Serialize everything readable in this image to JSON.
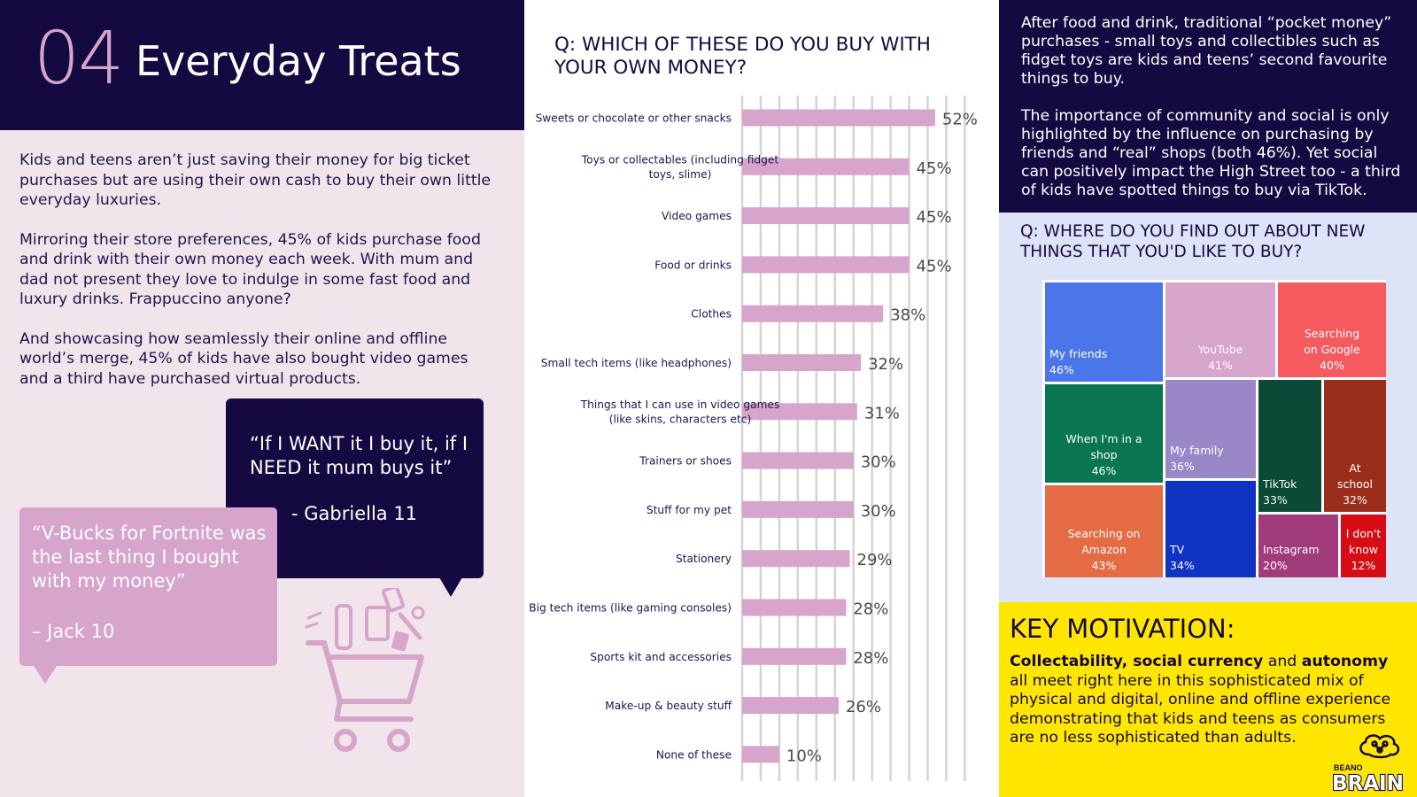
{
  "header": {
    "number": "04",
    "title": "Everyday Treats"
  },
  "intro": {
    "p1": "Kids and teens aren’t  just saving their money for big ticket purchases but are using their own cash to buy their own little everyday luxuries.",
    "p2": "Mirroring their store preferences, 45% of kids purchase food and drink with their own money each week.  With mum and dad not present they love to indulge in some fast food and luxury drinks. Frappuccino anyone?",
    "p3": "And showcasing how seamlessly their online and offline world’s merge, 45% of kids have also bought video games and a third have purchased virtual products."
  },
  "quotes": {
    "gabriella": {
      "text": "“If I WANT it I buy it, if I NEED it mum buys it”",
      "author": "- Gabriella 11"
    },
    "jack": {
      "text": "“V-Bucks for Fortnite was the last thing I bought with my money”",
      "author": "– Jack 10"
    }
  },
  "chart_data": [
    {
      "type": "bar",
      "orientation": "horizontal",
      "title": "Q: WHICH OF THESE DO YOU BUY WITH YOUR OWN MONEY?",
      "categories": [
        [
          "Sweets or chocolate or other snacks"
        ],
        [
          "Toys or collectables (including fidget",
          "toys, slime)"
        ],
        [
          "Video games"
        ],
        [
          "Food or drinks"
        ],
        [
          "Clothes"
        ],
        [
          "Small tech items (like headphones)"
        ],
        [
          "Things that I can use in video games",
          "(like skins, characters etc)"
        ],
        [
          "Trainers or shoes"
        ],
        [
          "Stuff for my pet"
        ],
        [
          "Stationery"
        ],
        [
          "Big tech items (like gaming consoles)"
        ],
        [
          "Sports kit and accessories"
        ],
        [
          "Make-up & beauty stuff"
        ],
        [
          "None of these"
        ]
      ],
      "values": [
        52,
        45,
        45,
        45,
        38,
        32,
        31,
        30,
        30,
        29,
        28,
        28,
        26,
        10
      ],
      "value_labels": [
        "52%",
        "45%",
        "45%",
        "45%",
        "38%",
        "32%",
        "31%",
        "30%",
        "30%",
        "29%",
        "28%",
        "28%",
        "26%",
        "10%"
      ],
      "xlim": [
        0,
        60
      ],
      "grid": true,
      "bar_color": "#d7a4cb"
    },
    {
      "type": "treemap",
      "title": "Q: WHERE DO YOU FIND OUT ABOUT NEW THINGS THAT YOU'D LIKE TO BUY?",
      "items": [
        {
          "name": [
            "My friends"
          ],
          "value": 46,
          "label": "46%",
          "color": "#4a76ea"
        },
        {
          "name": [
            "YouTube"
          ],
          "value": 41,
          "label": "41%",
          "color": "#d7a4cb"
        },
        {
          "name": [
            "Searching",
            "on Google"
          ],
          "value": 40,
          "label": "40%",
          "color": "#f55a5f"
        },
        {
          "name": [
            "When I'm in a",
            "shop"
          ],
          "value": 46,
          "label": "46%",
          "color": "#097651"
        },
        {
          "name": [
            "My family"
          ],
          "value": 36,
          "label": "36%",
          "color": "#9a87c8"
        },
        {
          "name": [
            "TikTok"
          ],
          "value": 33,
          "label": "33%",
          "color": "#0b4a37"
        },
        {
          "name": [
            "At",
            "school"
          ],
          "value": 32,
          "label": "32%",
          "color": "#9b2e1a"
        },
        {
          "name": [
            "Searching on",
            "Amazon"
          ],
          "value": 43,
          "label": "43%",
          "color": "#e56b44"
        },
        {
          "name": [
            "TV"
          ],
          "value": 34,
          "label": "34%",
          "color": "#0f33c2"
        },
        {
          "name": [
            "Instagram"
          ],
          "value": 20,
          "label": "20%",
          "color": "#a23b7b"
        },
        {
          "name": [
            "I don't",
            "know"
          ],
          "value": 12,
          "label": "12%",
          "color": "#d70c14"
        }
      ]
    }
  ],
  "right_text": {
    "p1": "After food and drink, traditional “pocket money” purchases - small toys and collectibles such as fidget toys are kids and teens’ second favourite things to buy.",
    "p2": "The importance of community and social is only highlighted by the influence on purchasing by friends and “real” shops (both 46%).  Yet social can positively impact the High Street too - a third of kids have spotted things to buy via TikTok."
  },
  "key_motivation": {
    "title": "KEY MOTIVATION:",
    "b1": "Collectability, social currency",
    "and": " and ",
    "b2": "autonomy",
    "rest": " all meet right here in this sophisticated mix of physical and digital, online and offline experience demonstrating that kids and teens as consumers are no less sophisticated than adults."
  },
  "logo": {
    "top": "BEANO",
    "bottom": "BRAIN"
  },
  "colors": {
    "navy": "#150941",
    "pink": "#d7a4cb",
    "blush": "#f1e4ea",
    "lavender": "#dde4f8",
    "yellow": "#ffe600"
  }
}
